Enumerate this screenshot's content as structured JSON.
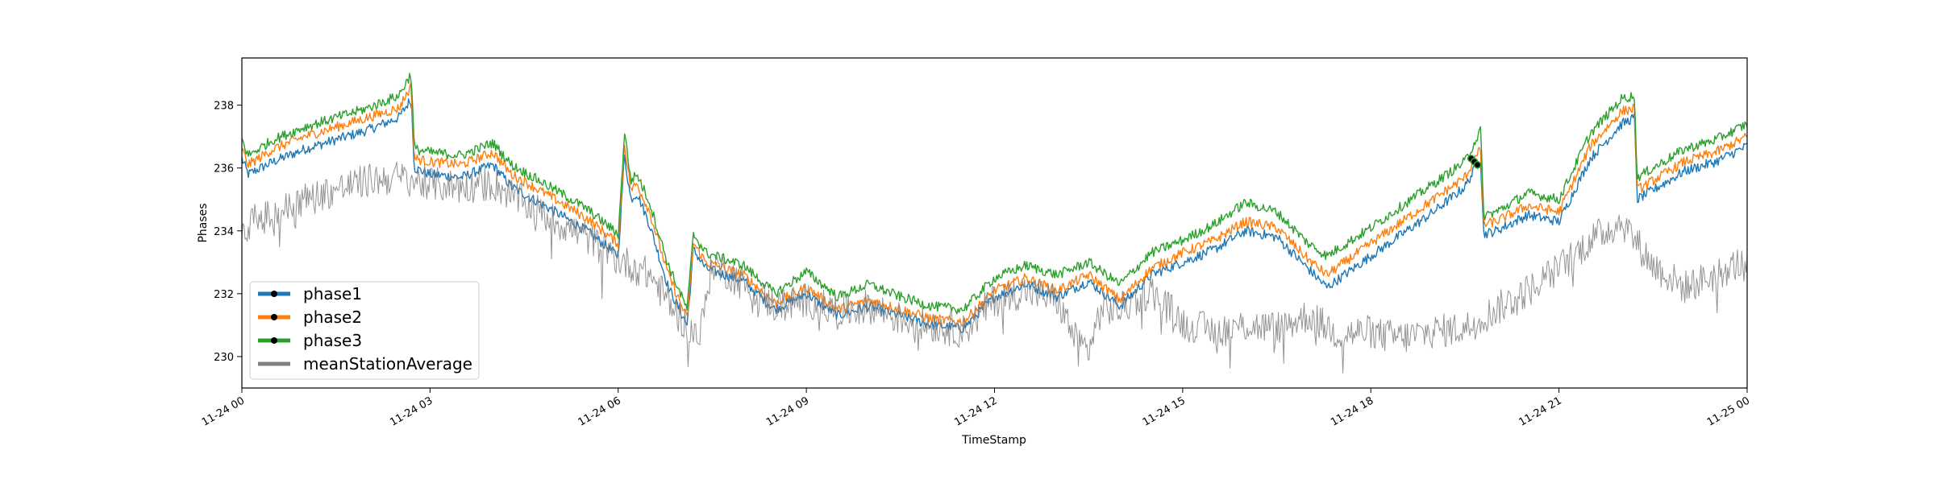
{
  "chart_data": {
    "type": "line",
    "title": "",
    "xlabel": "TimeStamp",
    "ylabel": "Phases",
    "xlim": [
      0,
      24
    ],
    "ylim": [
      229.0,
      239.5
    ],
    "x_ticks": [
      {
        "value": 0,
        "label": "11-24 00"
      },
      {
        "value": 3,
        "label": "11-24 03"
      },
      {
        "value": 6,
        "label": "11-24 06"
      },
      {
        "value": 9,
        "label": "11-24 09"
      },
      {
        "value": 12,
        "label": "11-24 12"
      },
      {
        "value": 15,
        "label": "11-24 15"
      },
      {
        "value": 18,
        "label": "11-24 18"
      },
      {
        "value": 21,
        "label": "11-24 21"
      },
      {
        "value": 24,
        "label": "11-25 00"
      }
    ],
    "y_ticks": [
      {
        "value": 230,
        "label": "230"
      },
      {
        "value": 232,
        "label": "232"
      },
      {
        "value": 234,
        "label": "234"
      },
      {
        "value": 236,
        "label": "236"
      },
      {
        "value": 238,
        "label": "238"
      }
    ],
    "legend_position": "lower-left",
    "x_unit": "hours since 11-24 00:00",
    "series": [
      {
        "name": "phase1",
        "color": "#1f77b4",
        "x": [
          0,
          0.1,
          0.5,
          1,
          1.5,
          2,
          2.5,
          2.7,
          2.75,
          3,
          3.5,
          4,
          4.3,
          5,
          5.5,
          6,
          6.05,
          6.1,
          6.2,
          6.3,
          6.5,
          6.8,
          7.1,
          7.2,
          7.4,
          8,
          8.5,
          9,
          9.5,
          10,
          10.5,
          11,
          11.5,
          12,
          12.5,
          13,
          13.5,
          14,
          14.5,
          15,
          15.5,
          16,
          16.5,
          17,
          17.3,
          18,
          18.5,
          19,
          19.5,
          19.75,
          19.8,
          20,
          20.5,
          21,
          21.5,
          22,
          22.2,
          22.25,
          22.5,
          23,
          23.5,
          24
        ],
        "values": [
          236.3,
          235.8,
          236.2,
          236.6,
          236.9,
          237.2,
          237.6,
          238.2,
          236.0,
          235.8,
          235.7,
          236.1,
          235.4,
          234.6,
          234.0,
          233.2,
          234.8,
          236.4,
          235.0,
          235.2,
          234.2,
          232.2,
          231.0,
          233.4,
          232.8,
          232.4,
          231.5,
          232.0,
          231.3,
          231.6,
          231.3,
          231.0,
          230.9,
          231.9,
          232.3,
          231.9,
          232.4,
          231.6,
          232.6,
          233.0,
          233.4,
          234.0,
          233.8,
          232.8,
          232.2,
          233.2,
          233.9,
          234.6,
          235.4,
          236.3,
          233.9,
          234.0,
          234.5,
          234.3,
          236.3,
          237.4,
          237.6,
          235.0,
          235.3,
          235.9,
          236.2,
          236.7
        ]
      },
      {
        "name": "phase2",
        "color": "#ff7f0e",
        "x": [
          0,
          0.1,
          0.5,
          1,
          1.5,
          2,
          2.5,
          2.7,
          2.75,
          3,
          3.5,
          4,
          4.3,
          5,
          5.5,
          6,
          6.05,
          6.1,
          6.2,
          6.3,
          6.5,
          6.8,
          7.1,
          7.2,
          7.4,
          8,
          8.5,
          9,
          9.5,
          10,
          10.5,
          11,
          11.5,
          12,
          12.5,
          13,
          13.5,
          14,
          14.5,
          15,
          15.5,
          16,
          16.5,
          17,
          17.3,
          18,
          18.5,
          19,
          19.5,
          19.75,
          19.8,
          20,
          20.5,
          21,
          21.5,
          22,
          22.2,
          22.25,
          22.5,
          23,
          23.5,
          24
        ],
        "values": [
          236.6,
          236.1,
          236.6,
          237.0,
          237.3,
          237.6,
          237.9,
          238.6,
          236.3,
          236.2,
          236.1,
          236.5,
          235.8,
          235.0,
          234.4,
          233.6,
          235.1,
          236.8,
          235.3,
          235.5,
          234.6,
          232.6,
          231.2,
          233.6,
          233.0,
          232.6,
          231.7,
          232.2,
          231.5,
          231.8,
          231.5,
          231.2,
          231.1,
          232.1,
          232.5,
          232.1,
          232.6,
          231.8,
          232.8,
          233.3,
          233.7,
          234.3,
          234.1,
          233.1,
          232.6,
          233.6,
          234.3,
          235.0,
          235.7,
          236.6,
          234.2,
          234.3,
          234.8,
          234.6,
          236.7,
          237.8,
          237.9,
          235.3,
          235.6,
          236.2,
          236.5,
          237.0
        ]
      },
      {
        "name": "phase3",
        "color": "#2ca02c",
        "x": [
          0,
          0.1,
          0.5,
          1,
          1.5,
          2,
          2.5,
          2.7,
          2.75,
          3,
          3.5,
          4,
          4.3,
          5,
          5.5,
          6,
          6.05,
          6.1,
          6.2,
          6.3,
          6.5,
          6.8,
          7.1,
          7.2,
          7.4,
          8,
          8.5,
          9,
          9.5,
          10,
          10.5,
          11,
          11.5,
          12,
          12.5,
          13,
          13.5,
          14,
          14.5,
          15,
          15.5,
          16,
          16.5,
          17,
          17.3,
          18,
          18.5,
          19,
          19.5,
          19.75,
          19.8,
          20,
          20.5,
          21,
          21.5,
          22,
          22.2,
          22.25,
          22.5,
          23,
          23.5,
          24
        ],
        "values": [
          236.9,
          236.4,
          236.9,
          237.3,
          237.6,
          237.9,
          238.3,
          239.0,
          236.6,
          236.5,
          236.4,
          236.8,
          236.1,
          235.3,
          234.7,
          233.9,
          235.4,
          237.2,
          235.6,
          235.8,
          234.9,
          232.9,
          231.5,
          233.9,
          233.3,
          232.9,
          232.0,
          232.7,
          231.9,
          232.3,
          231.9,
          231.6,
          231.5,
          232.5,
          232.9,
          232.6,
          233.0,
          232.3,
          233.3,
          233.7,
          234.2,
          234.9,
          234.6,
          233.6,
          233.2,
          234.1,
          234.8,
          235.5,
          236.2,
          237.2,
          234.5,
          234.6,
          235.2,
          235.0,
          237.1,
          238.2,
          238.3,
          235.7,
          236.0,
          236.6,
          236.9,
          237.4
        ]
      },
      {
        "name": "meanStationAverage",
        "color": "#808080",
        "x": [
          0,
          0.5,
          1,
          1.5,
          2,
          2.5,
          3,
          3.5,
          4,
          4.5,
          5,
          5.5,
          6,
          6.5,
          7,
          7.3,
          7.5,
          8,
          8.5,
          9,
          9.5,
          10,
          10.5,
          11,
          11.5,
          12,
          12.5,
          13,
          13.3,
          13.5,
          13.7,
          14,
          14.5,
          15,
          15.5,
          16,
          16.5,
          17,
          17.5,
          18,
          18.1,
          18.5,
          19,
          19.5,
          20,
          20.5,
          21,
          21.5,
          22,
          22.5,
          23,
          23.5,
          24
        ],
        "values": [
          234.2,
          234.5,
          235.0,
          235.3,
          235.6,
          235.7,
          235.5,
          235.4,
          235.5,
          234.9,
          234.3,
          233.8,
          233.1,
          232.6,
          231.2,
          230.6,
          233.0,
          232.3,
          231.6,
          231.8,
          231.4,
          231.6,
          231.2,
          231.0,
          230.8,
          231.8,
          232.1,
          231.8,
          230.5,
          230.2,
          231.5,
          231.5,
          232.1,
          231.1,
          230.8,
          231.0,
          230.9,
          231.3,
          230.7,
          230.8,
          230.7,
          230.6,
          230.8,
          230.9,
          231.5,
          232.1,
          232.8,
          233.7,
          234.3,
          232.9,
          232.2,
          232.6,
          233.1
        ]
      }
    ],
    "markers": {
      "color": "#000000",
      "points": [
        {
          "x": 19.6,
          "y": 236.3
        },
        {
          "x": 19.65,
          "y": 236.2
        },
        {
          "x": 19.7,
          "y": 236.1
        }
      ]
    },
    "legend": [
      {
        "label": "phase1",
        "color": "#1f77b4",
        "marker": "dot"
      },
      {
        "label": "phase2",
        "color": "#ff7f0e",
        "marker": "dot"
      },
      {
        "label": "phase3",
        "color": "#2ca02c",
        "marker": "dot"
      },
      {
        "label": "meanStationAverage",
        "color": "#808080",
        "marker": "none"
      }
    ]
  }
}
